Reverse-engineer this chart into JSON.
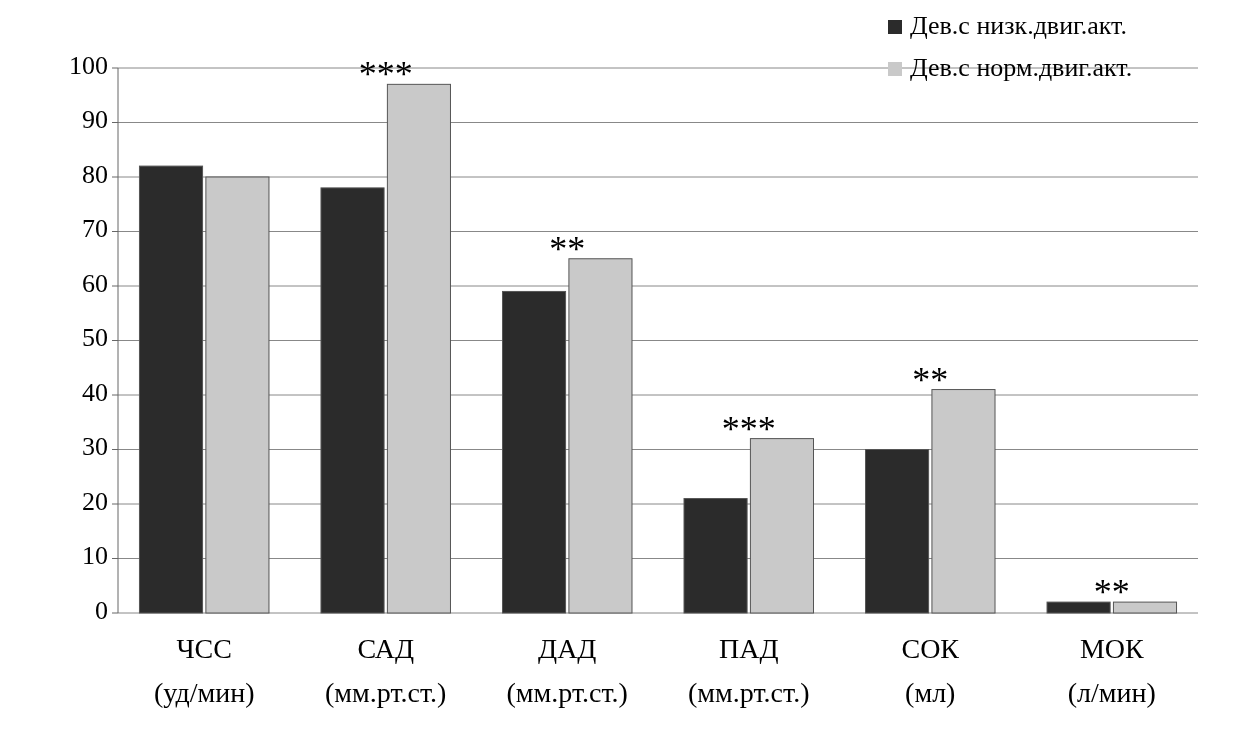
{
  "chart_data": {
    "type": "bar",
    "categories": [
      "ЧСС (уд/мин)",
      "САД (мм.рт.ст.)",
      "ДАД (мм.рт.ст.)",
      "ПАД (мм.рт.ст.)",
      "СОК (мл)",
      "МОК (л/мин)"
    ],
    "series": [
      {
        "name": "Дев.с низк.двиг.акт.",
        "color": "#2b2b2b",
        "values": [
          82,
          78,
          59,
          21,
          30,
          2
        ]
      },
      {
        "name": "Дев.с норм.двиг.акт.",
        "color": "#c9c9c9",
        "values": [
          80,
          97,
          65,
          32,
          41,
          2
        ]
      }
    ],
    "ylim": [
      0,
      100
    ],
    "yticks": [
      0,
      10,
      20,
      30,
      40,
      50,
      60,
      70,
      80,
      90,
      100
    ],
    "grid": "y",
    "legend": "top right",
    "annotations": [
      {
        "text": "***",
        "x": "САД (мм.рт.ст.)",
        "y": 97
      },
      {
        "text": "**",
        "x": "ДАД (мм.рт.ст.)",
        "y": 65
      },
      {
        "text": "***",
        "x": "ПАД (мм.рт.ст.)",
        "y": 32
      },
      {
        "text": "**",
        "x": "СОК (мл)",
        "y": 41
      },
      {
        "text": "**",
        "x": "МОК (л/мин)",
        "y": 2
      }
    ]
  }
}
